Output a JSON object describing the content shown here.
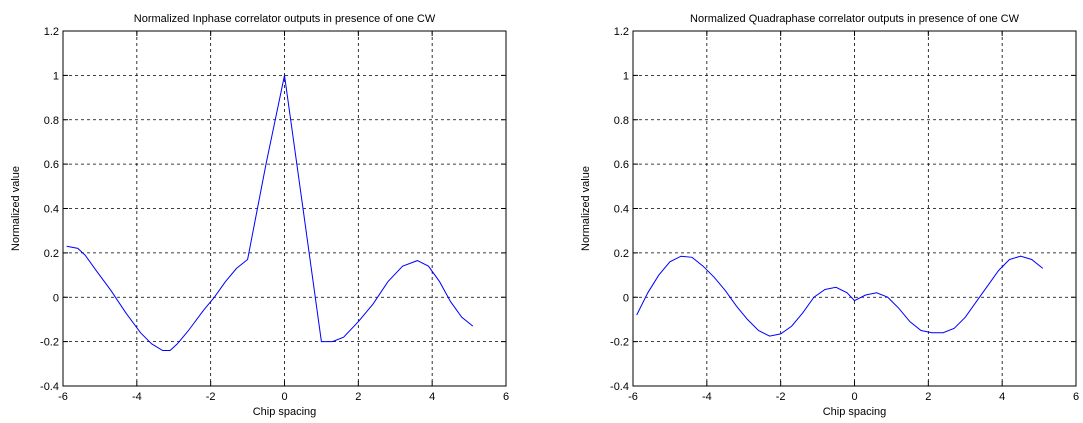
{
  "chart_data": [
    {
      "type": "line",
      "title": "Normalized Inphase correlator outputs in presence of one CW",
      "xlabel": "Chip spacing",
      "ylabel": "Normalized value",
      "xlim": [
        -6,
        6
      ],
      "ylim": [
        -0.4,
        1.2
      ],
      "xticks": [
        -6,
        -4,
        -2,
        0,
        2,
        4,
        6
      ],
      "yticks": [
        -0.4,
        -0.2,
        0,
        0.2,
        0.4,
        0.6,
        0.8,
        1,
        1.2
      ],
      "xtick_labels": [
        "-6",
        "-4",
        "-2",
        "0",
        "2",
        "4",
        "6"
      ],
      "ytick_labels": [
        "-0.4",
        "-0.2",
        "0",
        "0.2",
        "0.4",
        "0.6",
        "0.8",
        "1",
        "1.2"
      ],
      "grid": true,
      "line_color": "#0000ff",
      "series": [
        {
          "x": [
            -5.9,
            -5.6,
            -5.4,
            -5.1,
            -4.7,
            -4.3,
            -3.9,
            -3.6,
            -3.3,
            -3.1,
            -2.9,
            -2.6,
            -2.2,
            -1.9,
            -1.6,
            -1.3,
            -1.0,
            -0.5,
            0.0,
            0.5,
            1.0,
            1.3,
            1.6,
            2.0,
            2.4,
            2.8,
            3.2,
            3.6,
            3.9,
            4.2,
            4.5,
            4.8,
            5.1
          ],
          "y": [
            0.23,
            0.22,
            0.19,
            0.12,
            0.03,
            -0.07,
            -0.16,
            -0.21,
            -0.24,
            -0.24,
            -0.21,
            -0.15,
            -0.06,
            0.0,
            0.07,
            0.13,
            0.17,
            0.6,
            1.0,
            0.4,
            -0.2,
            -0.2,
            -0.18,
            -0.11,
            -0.03,
            0.07,
            0.14,
            0.165,
            0.14,
            0.07,
            -0.02,
            -0.09,
            -0.13
          ]
        }
      ]
    },
    {
      "type": "line",
      "title": "Normalized Quadraphase correlator outputs in presence of one CW",
      "xlabel": "Chip spacing",
      "ylabel": "Normalized value",
      "xlim": [
        -6,
        6
      ],
      "ylim": [
        -0.4,
        1.2
      ],
      "xticks": [
        -6,
        -4,
        -2,
        0,
        2,
        4,
        6
      ],
      "yticks": [
        -0.4,
        -0.2,
        0,
        0.2,
        0.4,
        0.6,
        0.8,
        1,
        1.2
      ],
      "xtick_labels": [
        "-6",
        "-4",
        "-2",
        "0",
        "2",
        "4",
        "6"
      ],
      "ytick_labels": [
        "-0.4",
        "-0.2",
        "0",
        "0.2",
        "0.4",
        "0.6",
        "0.8",
        "1",
        "1.2"
      ],
      "grid": true,
      "line_color": "#0000ff",
      "series": [
        {
          "x": [
            -5.9,
            -5.6,
            -5.3,
            -5.0,
            -4.7,
            -4.4,
            -4.1,
            -3.8,
            -3.5,
            -3.2,
            -2.9,
            -2.6,
            -2.3,
            -2.0,
            -1.7,
            -1.4,
            -1.1,
            -0.8,
            -0.5,
            -0.2,
            0.0,
            0.3,
            0.6,
            0.9,
            1.2,
            1.5,
            1.8,
            2.1,
            2.4,
            2.7,
            3.0,
            3.3,
            3.6,
            3.9,
            4.2,
            4.5,
            4.8,
            5.1
          ],
          "y": [
            -0.08,
            0.02,
            0.1,
            0.16,
            0.185,
            0.18,
            0.14,
            0.09,
            0.03,
            -0.04,
            -0.1,
            -0.15,
            -0.175,
            -0.165,
            -0.13,
            -0.07,
            0.0,
            0.035,
            0.045,
            0.02,
            -0.015,
            0.01,
            0.02,
            0.0,
            -0.05,
            -0.11,
            -0.15,
            -0.16,
            -0.16,
            -0.14,
            -0.09,
            -0.02,
            0.05,
            0.12,
            0.17,
            0.185,
            0.17,
            0.13
          ]
        }
      ]
    }
  ]
}
